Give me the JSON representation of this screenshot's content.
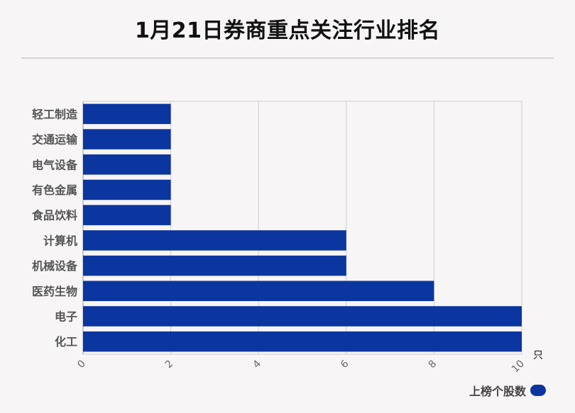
{
  "title": "1月21日券商重点关注行业排名",
  "colors": {
    "bar": "#0b36a0",
    "grid": "#d0cdd0",
    "axis": "#999999",
    "label": "#555555"
  },
  "legend": {
    "label": "上榜个股数"
  },
  "chart_data": {
    "type": "bar",
    "orientation": "horizontal",
    "title": "1月21日券商重点关注行业排名",
    "categories": [
      "轻工制造",
      "交通运输",
      "电气设备",
      "有色金属",
      "食品饮料",
      "计算机",
      "机械设备",
      "医药生物",
      "电子",
      "化工"
    ],
    "series": [
      {
        "name": "上榜个股数",
        "values": [
          2,
          2,
          2,
          2,
          2,
          6,
          6,
          8,
          10,
          10
        ]
      }
    ],
    "xlim": [
      0,
      10
    ],
    "xticks": [
      0,
      2,
      4,
      6,
      8,
      10
    ],
    "xunit": "只",
    "grid": true,
    "legend_position": "bottom-right"
  }
}
